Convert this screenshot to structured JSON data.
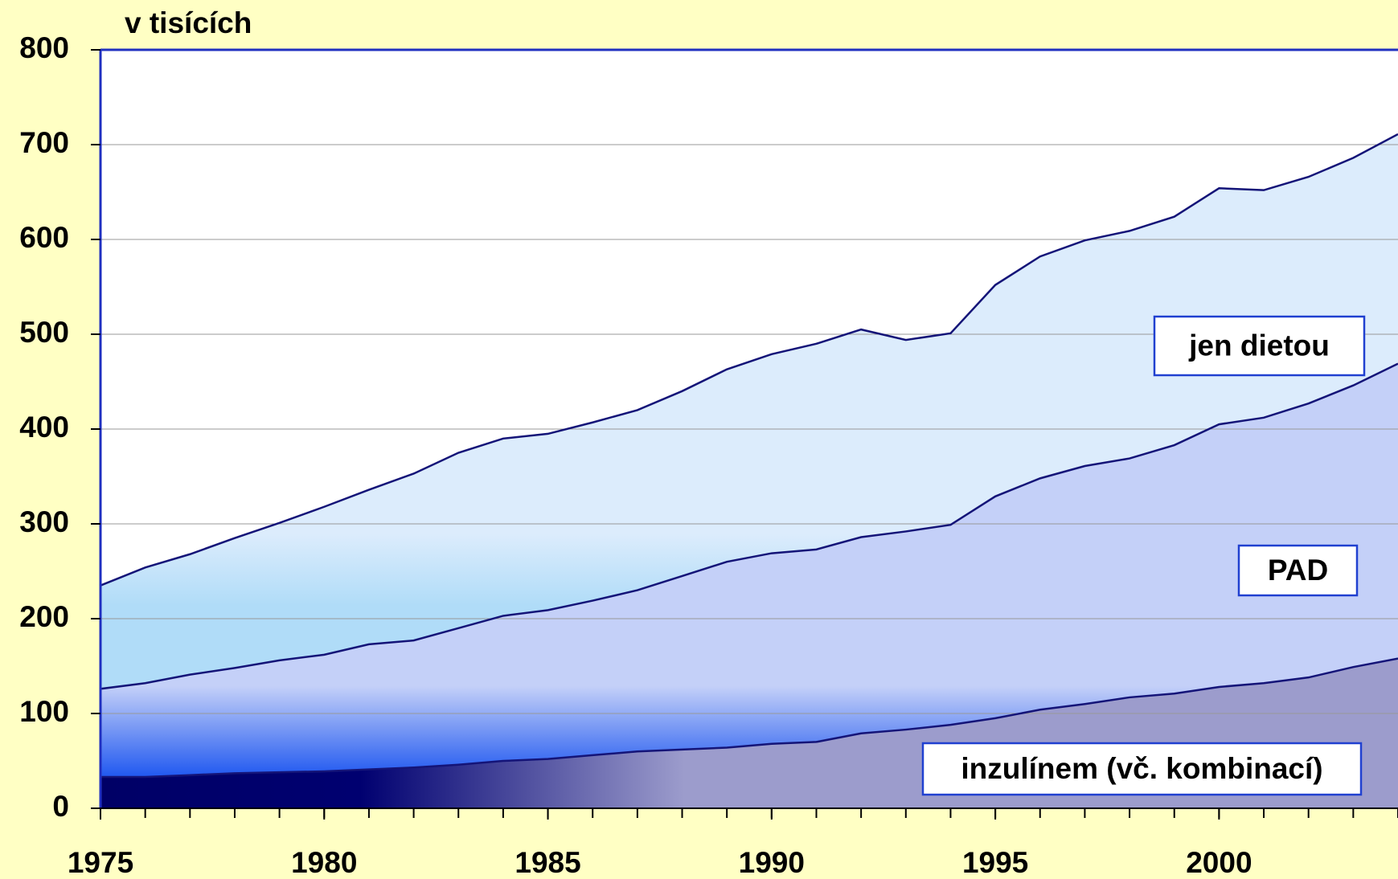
{
  "chart_data": {
    "type": "stacked-area",
    "title": "v tisících",
    "x": [
      1975,
      1976,
      1977,
      1978,
      1979,
      1980,
      1981,
      1982,
      1983,
      1984,
      1985,
      1986,
      1987,
      1988,
      1989,
      1990,
      1991,
      1992,
      1993,
      1994,
      1995,
      1996,
      1997,
      1998,
      1999,
      2000,
      2001,
      2002,
      2003,
      2004
    ],
    "series": [
      {
        "name": "inzulínem (vč. kombinací)",
        "color": "#9c9ccc",
        "values": [
          33,
          33,
          35,
          37,
          38,
          39,
          41,
          43,
          46,
          50,
          52,
          56,
          60,
          62,
          64,
          68,
          70,
          79,
          83,
          88,
          95,
          104,
          110,
          117,
          121,
          128,
          132,
          138,
          149,
          158
        ]
      },
      {
        "name": "PAD",
        "color": "#c4d0f8",
        "values": [
          93,
          99,
          106,
          111,
          118,
          123,
          132,
          134,
          144,
          153,
          157,
          163,
          170,
          183,
          196,
          201,
          203,
          207,
          209,
          211,
          234,
          244,
          251,
          252,
          262,
          277,
          280,
          289,
          297,
          311
        ]
      },
      {
        "name": "jen dietou",
        "color": "#dcecfc",
        "values": [
          109,
          122,
          127,
          137,
          145,
          156,
          163,
          176,
          185,
          187,
          186,
          188,
          190,
          195,
          203,
          210,
          217,
          219,
          202,
          202,
          223,
          234,
          238,
          240,
          241,
          249,
          240,
          239,
          240,
          242
        ]
      }
    ],
    "xlim": [
      1975,
      2004
    ],
    "xticks": [
      1975,
      1980,
      1985,
      1990,
      1995,
      2000
    ],
    "ylim": [
      0,
      800
    ],
    "yticks": [
      0,
      100,
      200,
      300,
      400,
      500,
      600,
      700,
      800
    ],
    "grid": true
  }
}
